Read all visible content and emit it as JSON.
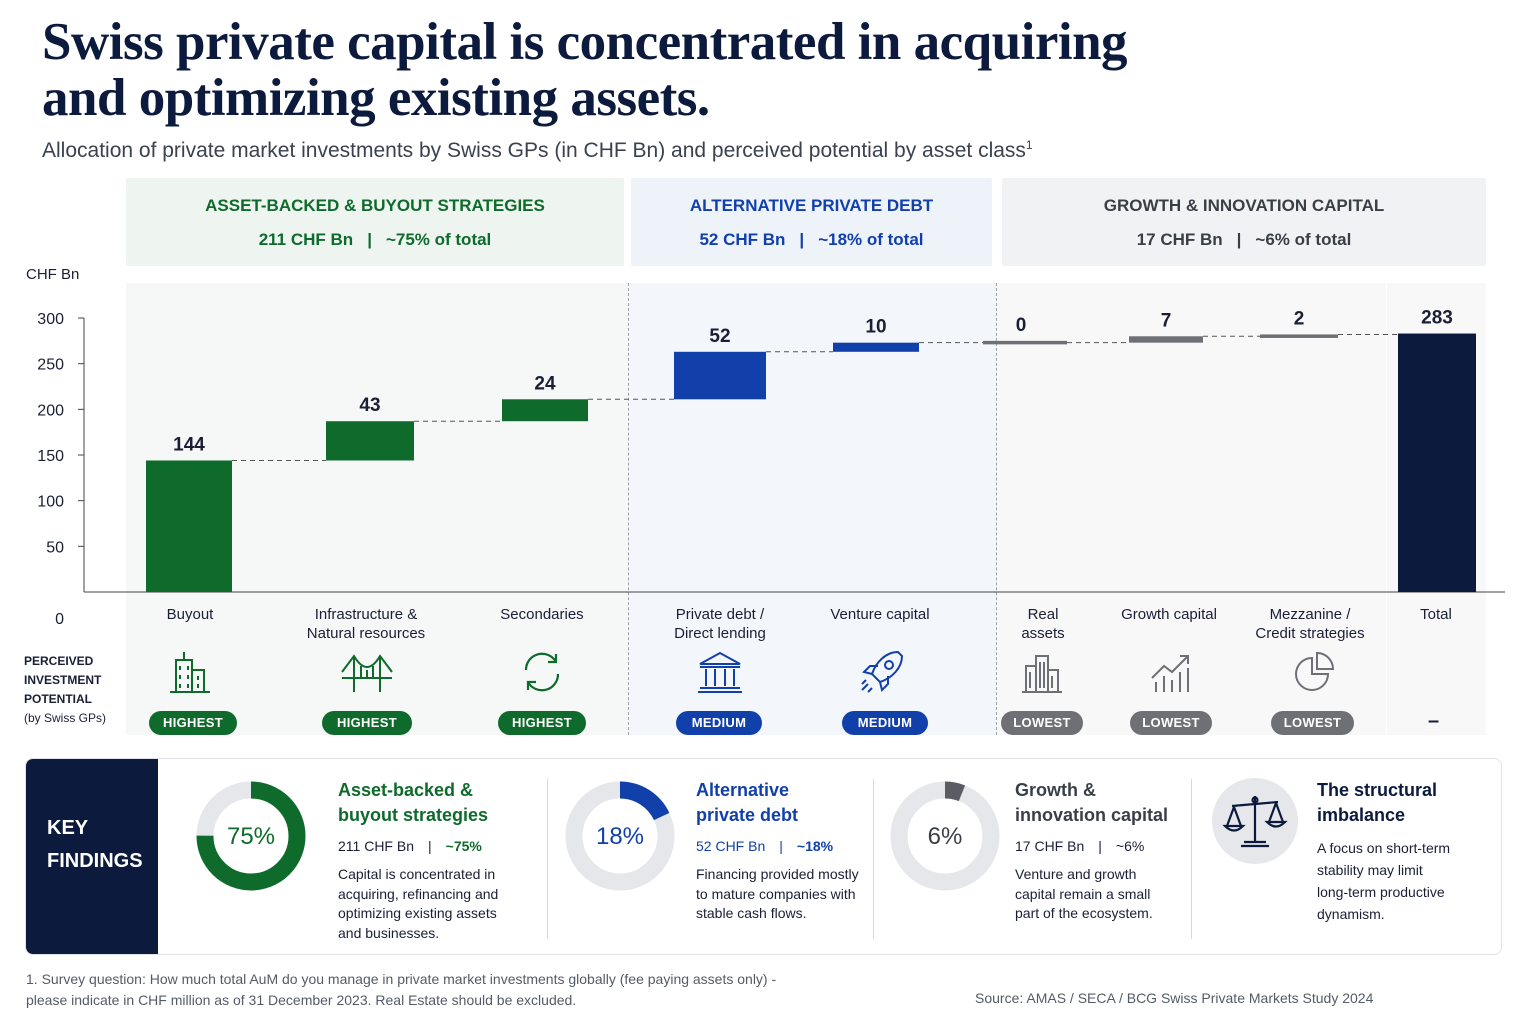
{
  "title": "Swiss private capital is concentrated in acquiring and optimizing existing assets.",
  "subtitle": "Allocation of private market investments by Swiss GPs (in CHF Bn) and perceived potential by asset class",
  "subtitle_sup": "1",
  "groups": [
    {
      "title": "ASSET-BACKED & BUYOUT STRATEGIES",
      "amount": "211 CHF Bn",
      "sep": "|",
      "share": "~75% of total",
      "color": "#0e6b2b"
    },
    {
      "title": "ALTERNATIVE PRIVATE DEBT",
      "amount": "52 CHF Bn",
      "sep": "|",
      "share": "~18% of total",
      "color": "#1240ab"
    },
    {
      "title": "GROWTH & INNOVATION CAPITAL",
      "amount": "17 CHF Bn",
      "sep": "|",
      "share": "~6% of total",
      "color": "#3a3f47"
    }
  ],
  "chart_data": {
    "type": "waterfall",
    "ylabel": "CHF Bn",
    "ylim": [
      0,
      300
    ],
    "yticks": [
      0,
      50,
      100,
      150,
      200,
      250,
      300
    ],
    "categories": [
      "Buyout",
      "Infrastructure & Natural resources",
      "Secondaries",
      "Private debt / Direct lending",
      "Venture capital",
      "Real assets",
      "Growth capital",
      "Mezzanine / Credit strategies",
      "Total"
    ],
    "values": [
      144,
      43,
      24,
      52,
      10,
      0,
      7,
      2,
      283
    ],
    "data_labels": [
      "144",
      "43",
      "24",
      "52",
      "10",
      "0",
      "7",
      "2",
      "283"
    ],
    "perceived_potential": [
      "HIGHEST",
      "HIGHEST",
      "HIGHEST",
      "MEDIUM",
      "MEDIUM",
      "LOWEST",
      "LOWEST",
      "LOWEST",
      "–"
    ],
    "colors": {
      "asset_backed": "#0e6b2b",
      "private_debt": "#1240ab",
      "growth": "#6e7075",
      "total": "#0b1a3d"
    },
    "grid": false
  },
  "category_labels": [
    [
      "Buyout"
    ],
    [
      "Infrastructure &",
      "Natural resources"
    ],
    [
      "Secondaries"
    ],
    [
      "Private debt /",
      "Direct lending"
    ],
    [
      "Venture capital"
    ],
    [
      "Real",
      "assets"
    ],
    [
      "Growth capital"
    ],
    [
      "Mezzanine /",
      "Credit strategies"
    ],
    [
      "Total"
    ]
  ],
  "potential_label": {
    "line1": "PERCEIVED",
    "line2": "INVESTMENT",
    "line3": "POTENTIAL",
    "line4": "(by Swiss GPs)"
  },
  "badges": [
    "HIGHEST",
    "HIGHEST",
    "HIGHEST",
    "MEDIUM",
    "MEDIUM",
    "LOWEST",
    "LOWEST",
    "LOWEST"
  ],
  "total_potential": "–",
  "icons": [
    "buildings-icon",
    "bridge-icon",
    "recycle-arrows-icon",
    "bank-icon",
    "rocket-icon",
    "city-buildings-icon",
    "growth-chart-icon",
    "pie-chart-icon"
  ],
  "key_findings": {
    "label_line1": "KEY",
    "label_line2": "FINDINGS",
    "items": [
      {
        "donut_label": "75%",
        "share": 0.75,
        "color": "#0e6b2b",
        "head1": "Asset-backed &",
        "head2": "buyout strategies",
        "amount": "211 CHF Bn",
        "sep": "|",
        "pct": "~75%",
        "text": [
          "Capital is concentrated in",
          "acquiring, refinancing and",
          "optimizing existing assets",
          "and businesses."
        ]
      },
      {
        "donut_label": "18%",
        "share": 0.18,
        "color": "#1240ab",
        "head1": "Alternative",
        "head2": "private debt",
        "amount": "52 CHF Bn",
        "sep": "|",
        "pct": "~18%",
        "text": [
          "Financing provided mostly",
          "to mature companies with",
          "stable cash flows."
        ]
      },
      {
        "donut_label": "6%",
        "share": 0.06,
        "color": "#5a5d63",
        "head1": "Growth &",
        "head2": "innovation capital",
        "amount": "17 CHF Bn",
        "sep": "|",
        "pct": "~6%",
        "text": [
          "Venture and growth",
          "capital remain a small",
          "part of the ecosystem."
        ]
      },
      {
        "icon": "scales-icon",
        "head1": "The structural",
        "head2": "imbalance",
        "text": [
          "A focus on short-term",
          "stability may limit",
          "long-term productive",
          "dynamism."
        ]
      }
    ]
  },
  "footnote": [
    "1. Survey question: How much total AuM do you manage in private market investments globally (fee paying assets only) -",
    "please indicate in CHF million as of 31 December 2023.  Real Estate should be excluded."
  ],
  "source": "Source: AMAS / SECA / BCG Swiss Private Markets Study 2024"
}
